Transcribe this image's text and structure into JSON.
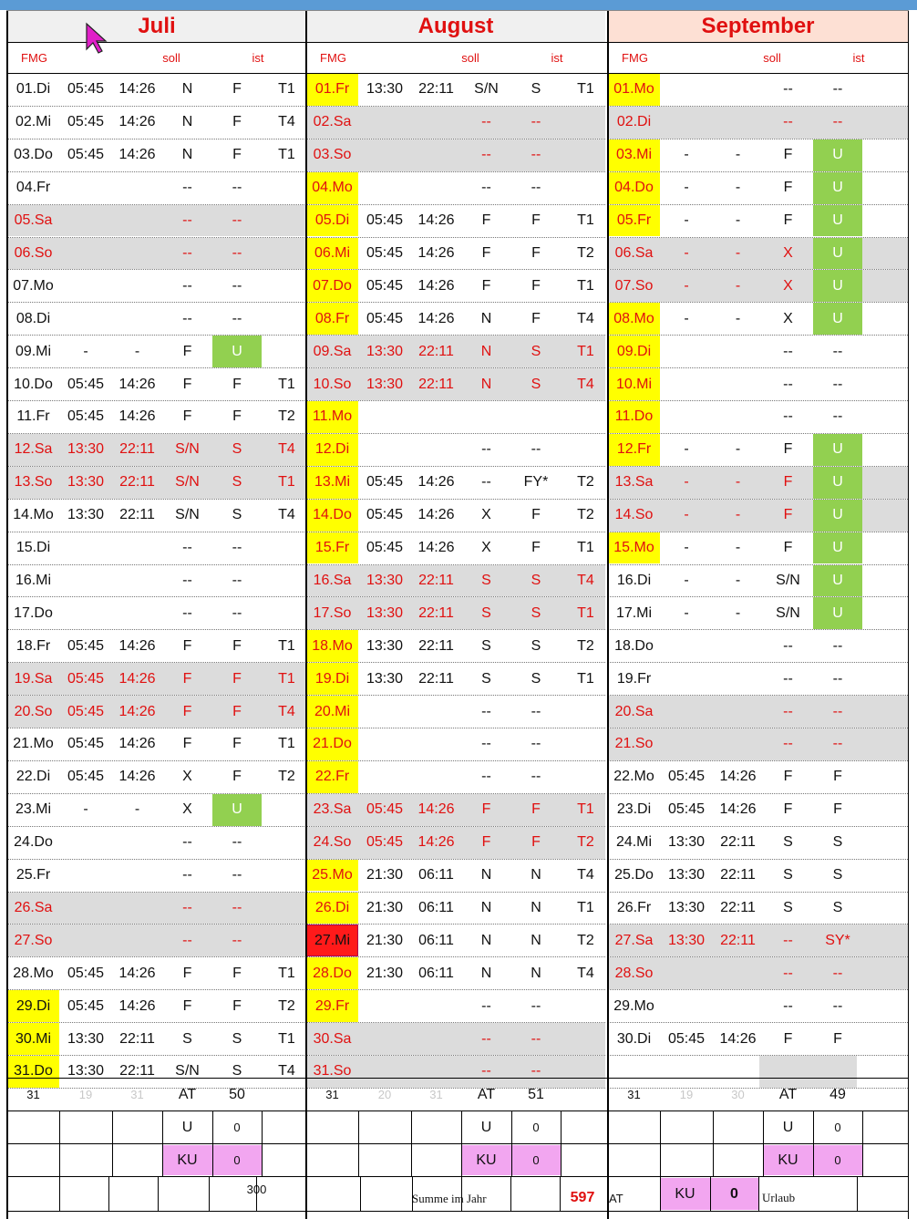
{
  "months": [
    {
      "name": "Juli",
      "headers": {
        "fmg": "FMG",
        "soll": "soll",
        "ist": "ist"
      },
      "days": [
        {
          "day": "01.Di",
          "start": "05:45",
          "end": "14:26",
          "soll": "N",
          "ist": "F",
          "code": "T1"
        },
        {
          "day": "02.Mi",
          "start": "05:45",
          "end": "14:26",
          "soll": "N",
          "ist": "F",
          "code": "T4"
        },
        {
          "day": "03.Do",
          "start": "05:45",
          "end": "14:26",
          "soll": "N",
          "ist": "F",
          "code": "T1"
        },
        {
          "day": "04.Fr",
          "start": "",
          "end": "",
          "soll": "--",
          "ist": "--",
          "code": ""
        },
        {
          "day": "05.Sa",
          "start": "",
          "end": "",
          "soll": "--",
          "ist": "--",
          "code": "",
          "weekend": true
        },
        {
          "day": "06.So",
          "start": "",
          "end": "",
          "soll": "--",
          "ist": "--",
          "code": "",
          "weekend": true
        },
        {
          "day": "07.Mo",
          "start": "",
          "end": "",
          "soll": "--",
          "ist": "--",
          "code": ""
        },
        {
          "day": "08.Di",
          "start": "",
          "end": "",
          "soll": "--",
          "ist": "--",
          "code": ""
        },
        {
          "day": "09.Mi",
          "start": "-",
          "end": "-",
          "soll": "F",
          "ist": "U",
          "code": "",
          "ist_green": true
        },
        {
          "day": "10.Do",
          "start": "05:45",
          "end": "14:26",
          "soll": "F",
          "ist": "F",
          "code": "T1"
        },
        {
          "day": "11.Fr",
          "start": "05:45",
          "end": "14:26",
          "soll": "F",
          "ist": "F",
          "code": "T2"
        },
        {
          "day": "12.Sa",
          "start": "13:30",
          "end": "22:11",
          "soll": "S/N",
          "ist": "S",
          "code": "T4",
          "weekend": true
        },
        {
          "day": "13.So",
          "start": "13:30",
          "end": "22:11",
          "soll": "S/N",
          "ist": "S",
          "code": "T1",
          "weekend": true
        },
        {
          "day": "14.Mo",
          "start": "13:30",
          "end": "22:11",
          "soll": "S/N",
          "ist": "S",
          "code": "T4"
        },
        {
          "day": "15.Di",
          "start": "",
          "end": "",
          "soll": "--",
          "ist": "--",
          "code": ""
        },
        {
          "day": "16.Mi",
          "start": "",
          "end": "",
          "soll": "--",
          "ist": "--",
          "code": ""
        },
        {
          "day": "17.Do",
          "start": "",
          "end": "",
          "soll": "--",
          "ist": "--",
          "code": ""
        },
        {
          "day": "18.Fr",
          "start": "05:45",
          "end": "14:26",
          "soll": "F",
          "ist": "F",
          "code": "T1"
        },
        {
          "day": "19.Sa",
          "start": "05:45",
          "end": "14:26",
          "soll": "F",
          "ist": "F",
          "code": "T1",
          "weekend": true
        },
        {
          "day": "20.So",
          "start": "05:45",
          "end": "14:26",
          "soll": "F",
          "ist": "F",
          "code": "T4",
          "weekend": true
        },
        {
          "day": "21.Mo",
          "start": "05:45",
          "end": "14:26",
          "soll": "F",
          "ist": "F",
          "code": "T1"
        },
        {
          "day": "22.Di",
          "start": "05:45",
          "end": "14:26",
          "soll": "X",
          "ist": "F",
          "code": "T2"
        },
        {
          "day": "23.Mi",
          "start": "-",
          "end": "-",
          "soll": "X",
          "ist": "U",
          "code": "",
          "ist_green": true
        },
        {
          "day": "24.Do",
          "start": "",
          "end": "",
          "soll": "--",
          "ist": "--",
          "code": ""
        },
        {
          "day": "25.Fr",
          "start": "",
          "end": "",
          "soll": "--",
          "ist": "--",
          "code": ""
        },
        {
          "day": "26.Sa",
          "start": "",
          "end": "",
          "soll": "--",
          "ist": "--",
          "code": "",
          "weekend": true
        },
        {
          "day": "27.So",
          "start": "",
          "end": "",
          "soll": "--",
          "ist": "--",
          "code": "",
          "weekend": true
        },
        {
          "day": "28.Mo",
          "start": "05:45",
          "end": "14:26",
          "soll": "F",
          "ist": "F",
          "code": "T1"
        },
        {
          "day": "29.Di",
          "start": "05:45",
          "end": "14:26",
          "soll": "F",
          "ist": "F",
          "code": "T2",
          "day_hl": "yellow"
        },
        {
          "day": "30.Mi",
          "start": "13:30",
          "end": "22:11",
          "soll": "S",
          "ist": "S",
          "code": "T1",
          "day_hl": "yellow"
        },
        {
          "day": "31.Do",
          "start": "13:30",
          "end": "22:11",
          "soll": "S/N",
          "ist": "S",
          "code": "T4",
          "day_hl": "yellow"
        }
      ],
      "summary": {
        "total": "31",
        "a": "19",
        "b": "31",
        "at_label": "AT",
        "at_value": "50",
        "u_label": "U",
        "u_value": "0",
        "ku_label": "KU",
        "ku_value": "0"
      }
    },
    {
      "name": "August",
      "headers": {
        "fmg": "FMG",
        "soll": "soll",
        "ist": "ist"
      },
      "days": [
        {
          "day": "01.Fr",
          "start": "13:30",
          "end": "22:11",
          "soll": "S/N",
          "ist": "S",
          "code": "T1",
          "day_hl": "yellow",
          "day_red": true
        },
        {
          "day": "02.Sa",
          "start": "",
          "end": "",
          "soll": "--",
          "ist": "--",
          "code": "",
          "weekend": true
        },
        {
          "day": "03.So",
          "start": "",
          "end": "",
          "soll": "--",
          "ist": "--",
          "code": "",
          "weekend": true
        },
        {
          "day": "04.Mo",
          "start": "",
          "end": "",
          "soll": "--",
          "ist": "--",
          "code": "",
          "day_hl": "yellow",
          "day_red": true
        },
        {
          "day": "05.Di",
          "start": "05:45",
          "end": "14:26",
          "soll": "F",
          "ist": "F",
          "code": "T1",
          "day_hl": "yellow",
          "day_red": true
        },
        {
          "day": "06.Mi",
          "start": "05:45",
          "end": "14:26",
          "soll": "F",
          "ist": "F",
          "code": "T2",
          "day_hl": "yellow",
          "day_red": true
        },
        {
          "day": "07.Do",
          "start": "05:45",
          "end": "14:26",
          "soll": "F",
          "ist": "F",
          "code": "T1",
          "day_hl": "yellow",
          "day_red": true
        },
        {
          "day": "08.Fr",
          "start": "05:45",
          "end": "14:26",
          "soll": "N",
          "ist": "F",
          "code": "T4",
          "day_hl": "yellow",
          "day_red": true
        },
        {
          "day": "09.Sa",
          "start": "13:30",
          "end": "22:11",
          "soll": "N",
          "ist": "S",
          "code": "T1",
          "weekend": true
        },
        {
          "day": "10.So",
          "start": "13:30",
          "end": "22:11",
          "soll": "N",
          "ist": "S",
          "code": "T4",
          "weekend": true
        },
        {
          "day": "11.Mo",
          "start": "",
          "end": "",
          "soll": "",
          "ist": "",
          "code": "",
          "day_hl": "yellow",
          "day_red": true
        },
        {
          "day": "12.Di",
          "start": "",
          "end": "",
          "soll": "--",
          "ist": "--",
          "code": "",
          "day_hl": "yellow",
          "day_red": true
        },
        {
          "day": "13.Mi",
          "start": "05:45",
          "end": "14:26",
          "soll": "--",
          "ist": "FY*",
          "code": "T2",
          "day_hl": "yellow",
          "day_red": true
        },
        {
          "day": "14.Do",
          "start": "05:45",
          "end": "14:26",
          "soll": "X",
          "ist": "F",
          "code": "T2",
          "day_hl": "yellow",
          "day_red": true
        },
        {
          "day": "15.Fr",
          "start": "05:45",
          "end": "14:26",
          "soll": "X",
          "ist": "F",
          "code": "T1",
          "day_hl": "yellow",
          "day_red": true
        },
        {
          "day": "16.Sa",
          "start": "13:30",
          "end": "22:11",
          "soll": "S",
          "ist": "S",
          "code": "T4",
          "weekend": true
        },
        {
          "day": "17.So",
          "start": "13:30",
          "end": "22:11",
          "soll": "S",
          "ist": "S",
          "code": "T1",
          "weekend": true
        },
        {
          "day": "18.Mo",
          "start": "13:30",
          "end": "22:11",
          "soll": "S",
          "ist": "S",
          "code": "T2",
          "day_hl": "yellow",
          "day_red": true
        },
        {
          "day": "19.Di",
          "start": "13:30",
          "end": "22:11",
          "soll": "S",
          "ist": "S",
          "code": "T1",
          "day_hl": "yellow",
          "day_red": true
        },
        {
          "day": "20.Mi",
          "start": "",
          "end": "",
          "soll": "--",
          "ist": "--",
          "code": "",
          "day_hl": "yellow",
          "day_red": true
        },
        {
          "day": "21.Do",
          "start": "",
          "end": "",
          "soll": "--",
          "ist": "--",
          "code": "",
          "day_hl": "yellow",
          "day_red": true
        },
        {
          "day": "22.Fr",
          "start": "",
          "end": "",
          "soll": "--",
          "ist": "--",
          "code": "",
          "day_hl": "yellow",
          "day_red": true
        },
        {
          "day": "23.Sa",
          "start": "05:45",
          "end": "14:26",
          "soll": "F",
          "ist": "F",
          "code": "T1",
          "weekend": true
        },
        {
          "day": "24.So",
          "start": "05:45",
          "end": "14:26",
          "soll": "F",
          "ist": "F",
          "code": "T2",
          "weekend": true
        },
        {
          "day": "25.Mo",
          "start": "21:30",
          "end": "06:11",
          "soll": "N",
          "ist": "N",
          "code": "T4",
          "day_hl": "yellow",
          "day_red": true
        },
        {
          "day": "26.Di",
          "start": "21:30",
          "end": "06:11",
          "soll": "N",
          "ist": "N",
          "code": "T1",
          "day_hl": "yellow",
          "day_red": true
        },
        {
          "day": "27.Mi",
          "start": "21:30",
          "end": "06:11",
          "soll": "N",
          "ist": "N",
          "code": "T2",
          "day_hl": "red"
        },
        {
          "day": "28.Do",
          "start": "21:30",
          "end": "06:11",
          "soll": "N",
          "ist": "N",
          "code": "T4",
          "day_hl": "yellow",
          "day_red": true
        },
        {
          "day": "29.Fr",
          "start": "",
          "end": "",
          "soll": "--",
          "ist": "--",
          "code": "",
          "day_hl": "yellow",
          "day_red": true
        },
        {
          "day": "30.Sa",
          "start": "",
          "end": "",
          "soll": "--",
          "ist": "--",
          "code": "",
          "weekend": true
        },
        {
          "day": "31.So",
          "start": "",
          "end": "",
          "soll": "--",
          "ist": "--",
          "code": "",
          "weekend": true
        }
      ],
      "summary": {
        "total": "31",
        "a": "20",
        "b": "31",
        "at_label": "AT",
        "at_value": "51",
        "u_label": "U",
        "u_value": "0",
        "ku_label": "KU",
        "ku_value": "0"
      }
    },
    {
      "name": "September",
      "headers": {
        "fmg": "FMG",
        "soll": "soll",
        "ist": "ist"
      },
      "days": [
        {
          "day": "01.Mo",
          "start": "",
          "end": "",
          "soll": "--",
          "ist": "--",
          "code": "",
          "day_hl": "yellow",
          "day_red": true
        },
        {
          "day": "02.Di",
          "start": "",
          "end": "",
          "soll": "--",
          "ist": "--",
          "code": "",
          "weekend": true,
          "day_faint": true
        },
        {
          "day": "03.Mi",
          "start": "-",
          "end": "-",
          "soll": "F",
          "ist": "U",
          "code": "",
          "day_hl": "yellow",
          "day_red": true,
          "ist_green": true
        },
        {
          "day": "04.Do",
          "start": "-",
          "end": "-",
          "soll": "F",
          "ist": "U",
          "code": "",
          "day_hl": "yellow",
          "day_red": true,
          "ist_green": true
        },
        {
          "day": "05.Fr",
          "start": "-",
          "end": "-",
          "soll": "F",
          "ist": "U",
          "code": "",
          "day_hl": "yellow",
          "day_red": true,
          "ist_green": true
        },
        {
          "day": "06.Sa",
          "start": "-",
          "end": "-",
          "soll": "X",
          "ist": "U",
          "code": "",
          "weekend": true,
          "ist_green": true
        },
        {
          "day": "07.So",
          "start": "-",
          "end": "-",
          "soll": "X",
          "ist": "U",
          "code": "",
          "weekend": true,
          "ist_green": true
        },
        {
          "day": "08.Mo",
          "start": "-",
          "end": "-",
          "soll": "X",
          "ist": "U",
          "code": "",
          "day_hl": "yellow",
          "day_red": true,
          "ist_green": true
        },
        {
          "day": "09.Di",
          "start": "",
          "end": "",
          "soll": "--",
          "ist": "--",
          "code": "",
          "day_hl": "yellow",
          "day_red": true
        },
        {
          "day": "10.Mi",
          "start": "",
          "end": "",
          "soll": "--",
          "ist": "--",
          "code": "",
          "day_hl": "yellow",
          "day_red": true
        },
        {
          "day": "11.Do",
          "start": "",
          "end": "",
          "soll": "--",
          "ist": "--",
          "code": "",
          "day_hl": "yellow",
          "day_red": true
        },
        {
          "day": "12.Fr",
          "start": "-",
          "end": "-",
          "soll": "F",
          "ist": "U",
          "code": "",
          "day_hl": "yellow",
          "day_red": true,
          "ist_green": true
        },
        {
          "day": "13.Sa",
          "start": "-",
          "end": "-",
          "soll": "F",
          "ist": "U",
          "code": "",
          "weekend": true,
          "ist_green": true
        },
        {
          "day": "14.So",
          "start": "-",
          "end": "-",
          "soll": "F",
          "ist": "U",
          "code": "",
          "weekend": true,
          "ist_green": true
        },
        {
          "day": "15.Mo",
          "start": "-",
          "end": "-",
          "soll": "F",
          "ist": "U",
          "code": "",
          "day_hl": "yellow",
          "day_red": true,
          "ist_green": true
        },
        {
          "day": "16.Di",
          "start": "-",
          "end": "-",
          "soll": "S/N",
          "ist": "U",
          "code": "",
          "ist_green": true
        },
        {
          "day": "17.Mi",
          "start": "-",
          "end": "-",
          "soll": "S/N",
          "ist": "U",
          "code": "",
          "ist_green": true
        },
        {
          "day": "18.Do",
          "start": "",
          "end": "",
          "soll": "--",
          "ist": "--",
          "code": ""
        },
        {
          "day": "19.Fr",
          "start": "",
          "end": "",
          "soll": "--",
          "ist": "--",
          "code": ""
        },
        {
          "day": "20.Sa",
          "start": "",
          "end": "",
          "soll": "--",
          "ist": "--",
          "code": "",
          "weekend": true
        },
        {
          "day": "21.So",
          "start": "",
          "end": "",
          "soll": "--",
          "ist": "--",
          "code": "",
          "weekend": true
        },
        {
          "day": "22.Mo",
          "start": "05:45",
          "end": "14:26",
          "soll": "F",
          "ist": "F",
          "code": ""
        },
        {
          "day": "23.Di",
          "start": "05:45",
          "end": "14:26",
          "soll": "F",
          "ist": "F",
          "code": ""
        },
        {
          "day": "24.Mi",
          "start": "13:30",
          "end": "22:11",
          "soll": "S",
          "ist": "S",
          "code": ""
        },
        {
          "day": "25.Do",
          "start": "13:30",
          "end": "22:11",
          "soll": "S",
          "ist": "S",
          "code": ""
        },
        {
          "day": "26.Fr",
          "start": "13:30",
          "end": "22:11",
          "soll": "S",
          "ist": "S",
          "code": ""
        },
        {
          "day": "27.Sa",
          "start": "13:30",
          "end": "22:11",
          "soll": "--",
          "ist": "SY*",
          "code": "",
          "weekend": true
        },
        {
          "day": "28.So",
          "start": "",
          "end": "",
          "soll": "--",
          "ist": "--",
          "code": "",
          "weekend": true
        },
        {
          "day": "29.Mo",
          "start": "",
          "end": "",
          "soll": "--",
          "ist": "--",
          "code": ""
        },
        {
          "day": "30.Di",
          "start": "05:45",
          "end": "14:26",
          "soll": "F",
          "ist": "F",
          "code": ""
        },
        {
          "day": "",
          "start": "",
          "end": "",
          "soll": "",
          "ist": "",
          "code": "",
          "blank_gray": true
        }
      ],
      "summary": {
        "total": "31",
        "a": "19",
        "b": "30",
        "at_label": "AT",
        "at_value": "49",
        "u_label": "U",
        "u_value": "0",
        "ku_label": "KU",
        "ku_value": "0"
      }
    }
  ],
  "footer": {
    "juli_value": "300",
    "summe_label": "Summe im Jahr",
    "summe_value": "597",
    "at_label": "AT",
    "ku_label": "KU",
    "ku_value": "0",
    "urlaub_label": "Urlaub"
  },
  "colors": {
    "header_bar": "#5b9bd5",
    "weekend_gray": "#dcdcdc",
    "highlight_yellow": "#ffff00",
    "vacation_green": "#92d050",
    "ku_pink": "#f2a6f0",
    "today_red": "#ff1a1a",
    "text_red": "#e01010"
  }
}
